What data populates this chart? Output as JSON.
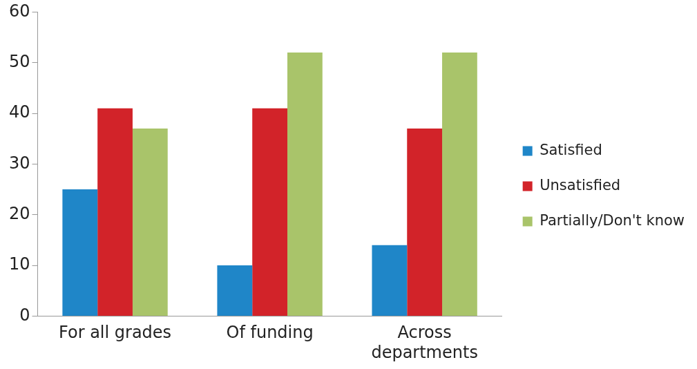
{
  "chart_data": {
    "type": "bar",
    "categories": [
      "For all grades",
      "Of funding",
      "Across departments"
    ],
    "series": [
      {
        "name": "Satisfied",
        "color": "#1f86c8",
        "values": [
          25,
          10,
          14
        ]
      },
      {
        "name": "Unsatisfied",
        "color": "#d22329",
        "values": [
          41,
          41,
          37
        ]
      },
      {
        "name": "Partially/Don't know",
        "color": "#a9c46a",
        "values": [
          37,
          52,
          52
        ]
      }
    ],
    "ylim": [
      0,
      60
    ],
    "yticks": [
      0,
      10,
      20,
      30,
      40,
      50,
      60
    ],
    "grid": false,
    "legend": "right"
  }
}
